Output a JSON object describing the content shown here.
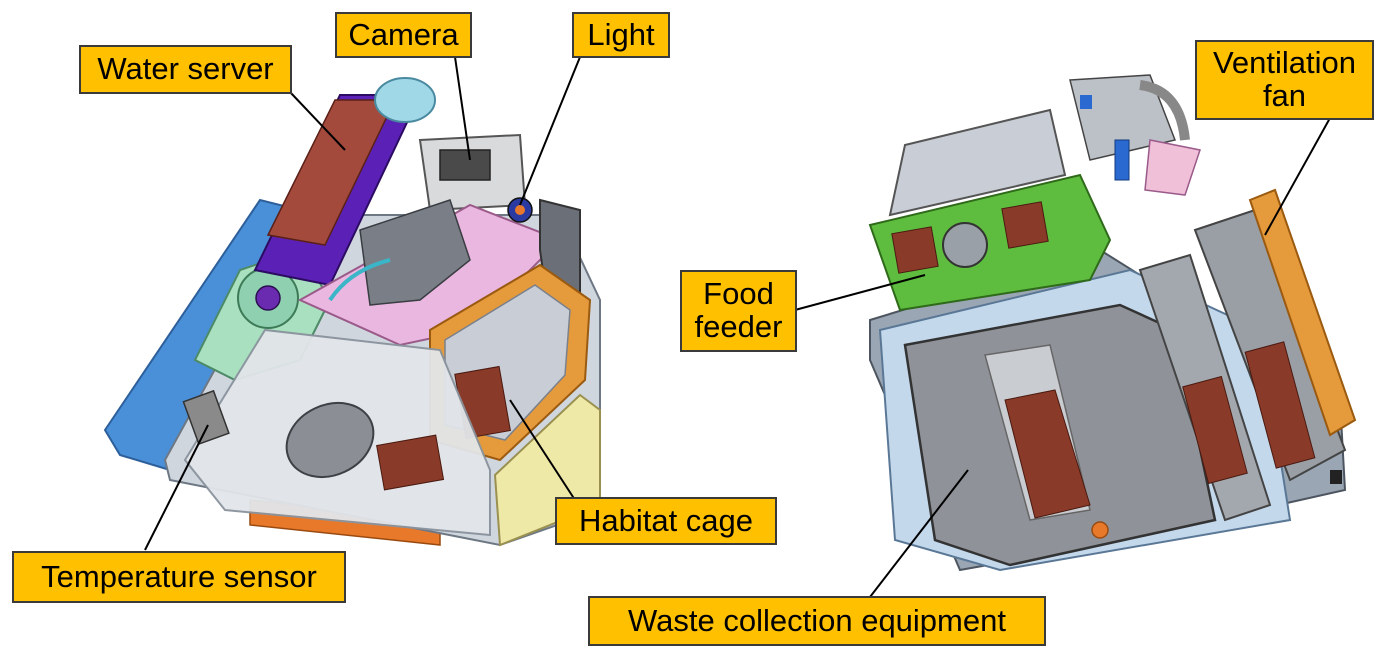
{
  "labels": {
    "water_server": "Water server",
    "camera": "Camera",
    "light": "Light",
    "ventilation_fan_line1": "Ventilation",
    "ventilation_fan_line2": "fan",
    "food_feeder_line1": "Food",
    "food_feeder_line2": "feeder",
    "habitat_cage": "Habitat cage",
    "temperature_sensor": "Temperature sensor",
    "waste_collection": "Waste collection equipment"
  },
  "colors": {
    "label_fill": "#ffc000",
    "label_border": "#3a3a3a",
    "leader_line": "#000000"
  }
}
